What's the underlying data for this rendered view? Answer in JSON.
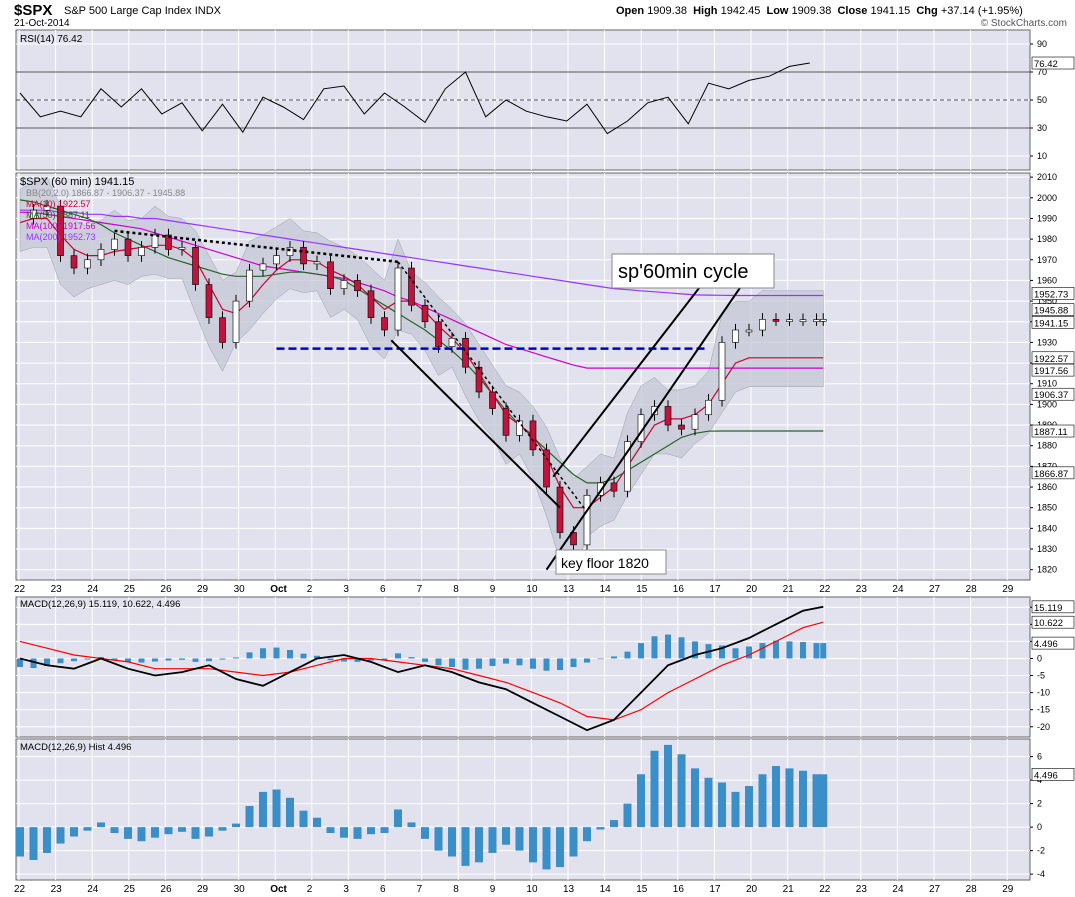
{
  "header": {
    "symbol": "$SPX",
    "name": "S&P 500 Large Cap Index",
    "exchange": "INDX",
    "date": "21-Oct-2014",
    "open_label": "Open",
    "open": "1909.38",
    "high_label": "High",
    "high": "1942.45",
    "low_label": "Low",
    "low": "1909.38",
    "close_label": "Close",
    "close": "1941.15",
    "chg_label": "Chg",
    "chg": "+37.14 (+1.95%)",
    "watermark": "© StockCharts.com"
  },
  "colors": {
    "panel_bg": "#e2e2ee",
    "up_candle": "#ffffff",
    "down_candle": "#c0143c",
    "ma10": "#cc0033",
    "ma50": "#226622",
    "ma100": "#cc00cc",
    "ma200": "#9933ff",
    "bb_fill": "#c7cbd6",
    "macd_hist": "#3b8fc8",
    "signal": "#ff0000",
    "support": "#0000cc"
  },
  "chart_data": [
    {
      "type": "line",
      "panel": "rsi",
      "legend": "RSI(14) 76.42",
      "yticks": [
        10,
        30,
        50,
        70,
        90
      ],
      "ylim": [
        0,
        100
      ],
      "overbought": 70,
      "oversold": 30,
      "last_label": "76.42",
      "x": [
        0,
        3,
        6,
        9,
        12,
        15,
        18,
        21,
        24,
        27,
        30,
        33,
        36,
        39,
        42,
        45,
        48,
        51,
        54,
        57,
        60,
        63,
        66,
        69,
        72,
        75,
        78,
        81,
        84,
        87,
        90,
        93,
        96,
        99,
        102,
        105,
        108,
        111,
        114,
        117
      ],
      "values": [
        55,
        38,
        42,
        38,
        58,
        45,
        58,
        40,
        48,
        28,
        47,
        27,
        52,
        45,
        36,
        58,
        60,
        40,
        55,
        45,
        34,
        58,
        70,
        38,
        50,
        42,
        38,
        35,
        47,
        26,
        35,
        48,
        52,
        33,
        62,
        58,
        64,
        67,
        74,
        76.42
      ]
    },
    {
      "type": "line",
      "panel": "price",
      "title": "$SPX (60 min) 1941.15",
      "legend": [
        {
          "name": "BB(20,2.0) 1866.87 - 1906.37 - 1945.88",
          "color": "#888888"
        },
        {
          "name": "MA(10) 1922.57",
          "color": "#cc0033"
        },
        {
          "name": "MA(50) 1887.11",
          "color": "#226622"
        },
        {
          "name": "MA(100) 1917.56",
          "color": "#cc00cc"
        },
        {
          "name": "MA(200) 1952.73",
          "color": "#9933ff"
        }
      ],
      "ylim": [
        1815,
        2012
      ],
      "yticks": [
        1820,
        1830,
        1840,
        1850,
        1860,
        1870,
        1880,
        1890,
        1900,
        1910,
        1920,
        1930,
        1940,
        1950,
        1960,
        1970,
        1980,
        1990,
        2000,
        2010
      ],
      "x_axis_labels": [
        "22",
        "23",
        "24",
        "25",
        "26",
        "29",
        "30",
        "Oct",
        "2",
        "3",
        "6",
        "7",
        "8",
        "9",
        "10",
        "13",
        "14",
        "15",
        "16",
        "17",
        "20",
        "21",
        "22",
        "23",
        "24",
        "27",
        "28",
        "29"
      ],
      "price_labels": [
        "1952.73",
        "1945.88",
        "1941.15",
        "1922.57",
        "1917.56",
        "1906.37",
        "1887.11",
        "1866.87"
      ],
      "annotations": [
        "sp'60min cycle",
        "key floor 1820"
      ],
      "support_level": 1927,
      "x": [
        0,
        2,
        4,
        6,
        8,
        10,
        12,
        14,
        16,
        18,
        20,
        22,
        24,
        26,
        28,
        30,
        32,
        34,
        36,
        38,
        40,
        42,
        44,
        46,
        48,
        50,
        52,
        54,
        56,
        58,
        60,
        62,
        64,
        66,
        68,
        70,
        72,
        74,
        76,
        78,
        80,
        82,
        84,
        86,
        88,
        90,
        92,
        94,
        96,
        98,
        100,
        102,
        104,
        106,
        108,
        110,
        112,
        114,
        116,
        118,
        119
      ],
      "close": [
        1990,
        1994,
        1996,
        1972,
        1966,
        1970,
        1975,
        1980,
        1972,
        1976,
        1982,
        1975,
        1976,
        1958,
        1942,
        1930,
        1950,
        1965,
        1968,
        1972,
        1976,
        1968,
        1969,
        1956,
        1960,
        1955,
        1942,
        1936,
        1966,
        1948,
        1940,
        1928,
        1932,
        1918,
        1906,
        1898,
        1885,
        1892,
        1878,
        1860,
        1838,
        1832,
        1856,
        1862,
        1858,
        1882,
        1895,
        1899,
        1890,
        1888,
        1895,
        1902,
        1930,
        1936,
        1936,
        1941.15,
        1941,
        1941,
        1941,
        1941,
        1941.15
      ],
      "ma10": [
        1988,
        1990,
        1990,
        1982,
        1975,
        1972,
        1972,
        1974,
        1975,
        1976,
        1977,
        1977,
        1975,
        1970,
        1958,
        1946,
        1944,
        1950,
        1958,
        1965,
        1970,
        1970,
        1969,
        1965,
        1962,
        1958,
        1952,
        1946,
        1950,
        1950,
        1945,
        1938,
        1932,
        1925,
        1915,
        1905,
        1895,
        1890,
        1885,
        1875,
        1860,
        1850,
        1850,
        1855,
        1860,
        1870,
        1880,
        1890,
        1893,
        1893,
        1895,
        1900,
        1910,
        1920,
        1922.57,
        1922.57,
        1922.57,
        1922.57,
        1922.57,
        1922.57,
        1922.57
      ],
      "ma50": [
        1999,
        1998,
        1996,
        1994,
        1992,
        1990,
        1987,
        1983,
        1980,
        1977,
        1974,
        1971,
        1969,
        1967,
        1965,
        1963,
        1962,
        1962,
        1962,
        1963,
        1964,
        1964,
        1963,
        1962,
        1960,
        1956,
        1952,
        1948,
        1944,
        1940,
        1936,
        1931,
        1926,
        1920,
        1913,
        1905,
        1897,
        1890,
        1884,
        1878,
        1872,
        1866,
        1862,
        1862,
        1864,
        1868,
        1872,
        1876,
        1880,
        1884,
        1886,
        1887,
        1887.11,
        1887.11,
        1887.11,
        1887.11,
        1887.11,
        1887.11,
        1887.11,
        1887.11,
        1887.11
      ],
      "ma100": [
        1993,
        1993,
        1992,
        1991,
        1990,
        1989,
        1988,
        1987,
        1986,
        1985,
        1983,
        1981,
        1979,
        1977,
        1975,
        1973,
        1971,
        1969,
        1967,
        1966,
        1965,
        1964,
        1963,
        1962,
        1961,
        1959,
        1957,
        1955,
        1952,
        1950,
        1947,
        1944,
        1941,
        1938,
        1935,
        1932,
        1929,
        1927,
        1925,
        1923,
        1921,
        1919,
        1917.56,
        1917.56,
        1917.56,
        1917.56,
        1917.56,
        1917.56,
        1917.56,
        1917.56,
        1917.56,
        1917.56,
        1917.56,
        1917.56,
        1917.56,
        1917.56,
        1917.56,
        1917.56,
        1917.56,
        1917.56,
        1917.56
      ],
      "ma200": [
        1994,
        1994,
        1994,
        1993,
        1993,
        1992,
        1992,
        1991,
        1991,
        1990,
        1990,
        1989,
        1988,
        1987,
        1986,
        1985,
        1984,
        1983,
        1982,
        1981,
        1980,
        1979,
        1978,
        1977,
        1976,
        1975,
        1974,
        1973,
        1972,
        1971,
        1970,
        1969,
        1968,
        1967,
        1966,
        1965,
        1964,
        1963,
        1962,
        1961,
        1960,
        1959,
        1958,
        1957,
        1956,
        1955.5,
        1955,
        1954.5,
        1954,
        1953.5,
        1953,
        1952.9,
        1952.8,
        1952.73,
        1952.73,
        1952.73,
        1952.73,
        1952.73,
        1952.73,
        1952.73,
        1952.73
      ]
    },
    {
      "type": "line",
      "panel": "macd",
      "legend": "MACD(12,26,9) 15.119, 10.622, 4.496",
      "yticks": [
        -20,
        -15,
        -10,
        -5,
        0,
        5,
        10,
        15
      ],
      "ylim": [
        -23,
        18
      ],
      "last_labels": [
        "15.119",
        "10.622",
        "4.496"
      ],
      "x": [
        0,
        4,
        8,
        12,
        16,
        20,
        24,
        28,
        32,
        36,
        40,
        44,
        48,
        52,
        56,
        60,
        64,
        68,
        72,
        76,
        80,
        84,
        88,
        92,
        96,
        100,
        104,
        108,
        112,
        116,
        119
      ],
      "macd": [
        0,
        -2,
        -3,
        0,
        -3,
        -5,
        -4,
        -2,
        -6,
        -8,
        -4,
        0,
        1,
        -1,
        -4,
        -2,
        -4,
        -7,
        -9,
        -13,
        -17,
        -21,
        -18,
        -10,
        -2,
        1,
        3,
        6,
        10,
        14,
        15.119
      ],
      "signal": [
        5,
        3,
        1,
        0,
        -1,
        -3,
        -3,
        -3,
        -4,
        -5,
        -4,
        -2,
        0,
        0,
        -1,
        -2,
        -3,
        -5,
        -7,
        -10,
        -13,
        -17,
        -18,
        -15,
        -10,
        -6,
        -2,
        1,
        5,
        9,
        10.622
      ]
    },
    {
      "type": "bar",
      "panel": "macd_hist",
      "legend": "MACD(12,26,9) Hist 4.496",
      "yticks": [
        -4,
        -2,
        0,
        2,
        4,
        6
      ],
      "ylim": [
        -4.5,
        7.5
      ],
      "last_label": "4.496",
      "x": [
        0,
        2,
        4,
        6,
        8,
        10,
        12,
        14,
        16,
        18,
        20,
        22,
        24,
        26,
        28,
        30,
        32,
        34,
        36,
        38,
        40,
        42,
        44,
        46,
        48,
        50,
        52,
        54,
        56,
        58,
        60,
        62,
        64,
        66,
        68,
        70,
        72,
        74,
        76,
        78,
        80,
        82,
        84,
        86,
        88,
        90,
        92,
        94,
        96,
        98,
        100,
        102,
        104,
        106,
        108,
        110,
        112,
        114,
        116,
        118,
        119
      ],
      "values": [
        -2.5,
        -2.8,
        -2.2,
        -1.4,
        -0.8,
        -0.3,
        0.4,
        -0.5,
        -1.0,
        -1.2,
        -0.9,
        -0.6,
        -0.4,
        -1.0,
        -0.8,
        -0.3,
        0.3,
        1.8,
        3.0,
        3.2,
        2.5,
        1.4,
        0.8,
        -0.5,
        -0.9,
        -1.0,
        -0.6,
        -0.5,
        1.5,
        0.4,
        -1.0,
        -2.0,
        -2.5,
        -3.3,
        -3.0,
        -2.2,
        -1.5,
        -2.0,
        -3.0,
        -3.6,
        -3.4,
        -2.5,
        -1.2,
        -0.2,
        0.6,
        2.0,
        4.5,
        6.5,
        7.0,
        6.2,
        5.0,
        4.2,
        3.8,
        3.0,
        3.5,
        4.5,
        5.2,
        5.0,
        4.8,
        4.5,
        4.496
      ]
    }
  ]
}
